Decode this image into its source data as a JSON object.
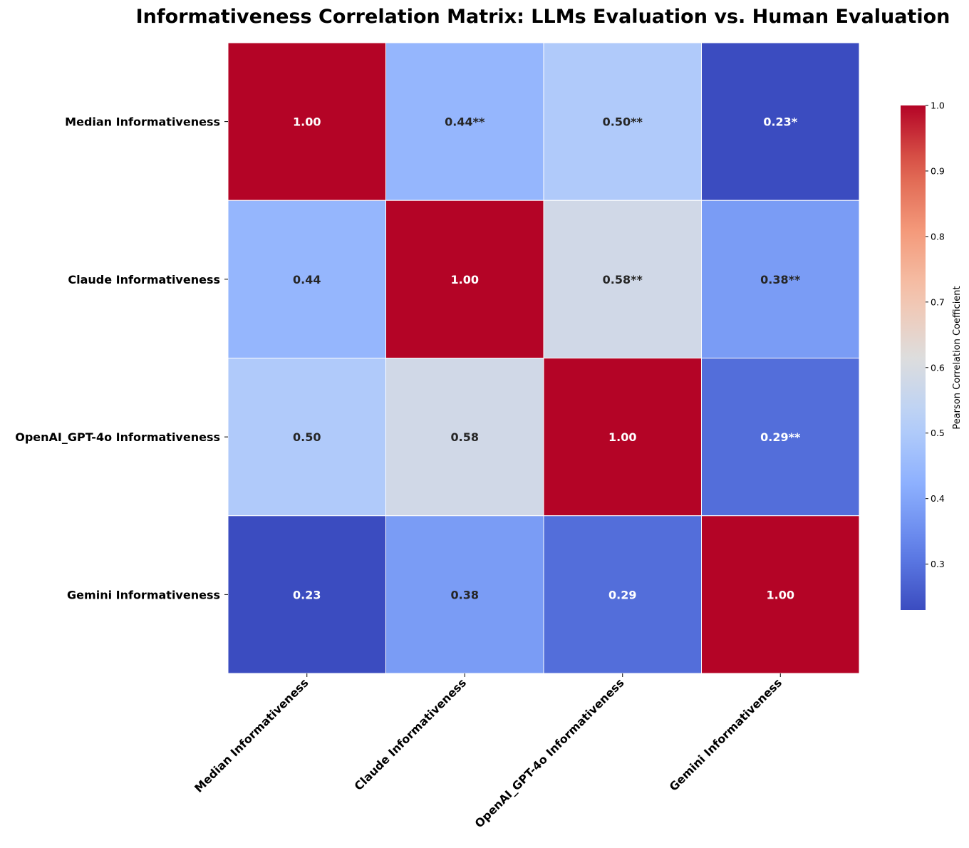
{
  "chart_data": {
    "type": "heatmap",
    "title": "Informativeness Correlation Matrix: LLMs Evaluation vs. Human Evaluation",
    "row_labels": [
      "Median Informativeness",
      "Claude Informativeness",
      "OpenAI_GPT-4o Informativeness",
      "Gemini Informativeness"
    ],
    "col_labels": [
      "Median Informativeness",
      "Claude Informativeness",
      "OpenAI_GPT-4o Informativeness",
      "Gemini Informativeness"
    ],
    "values": [
      [
        1.0,
        0.44,
        0.5,
        0.23
      ],
      [
        0.44,
        1.0,
        0.58,
        0.38
      ],
      [
        0.5,
        0.58,
        1.0,
        0.29
      ],
      [
        0.23,
        0.38,
        0.29,
        1.0
      ]
    ],
    "annotations": [
      [
        "1.00",
        "0.44**",
        "0.50**",
        "0.23*"
      ],
      [
        "0.44",
        "1.00",
        "0.58**",
        "0.38**"
      ],
      [
        "0.50",
        "0.58",
        "1.00",
        "0.29**"
      ],
      [
        "0.23",
        "0.38",
        "0.29",
        "1.00"
      ]
    ],
    "colormap": "coolwarm",
    "vmin": 0.23,
    "vmax": 1.0,
    "colorbar": {
      "label": "Pearson Correlation Coefficient",
      "ticks": [
        0.3,
        0.4,
        0.5,
        0.6,
        0.7,
        0.8,
        0.9,
        1.0
      ],
      "tick_labels": [
        "0.3",
        "0.4",
        "0.5",
        "0.6",
        "0.7",
        "0.8",
        "0.9",
        "1.0"
      ]
    }
  }
}
